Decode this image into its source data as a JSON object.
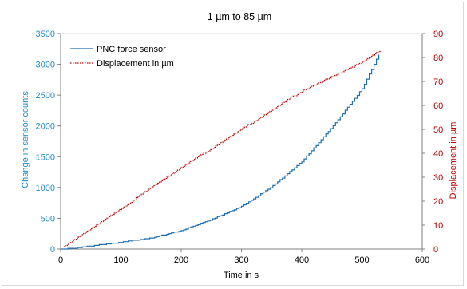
{
  "chart_data": {
    "type": "line",
    "title": "1 µm to 85 µm",
    "xlabel": "Time in s",
    "ylabel_left": "Change in sensor counts",
    "ylabel_right": "Displacement in µm",
    "xlim": [
      0,
      600
    ],
    "ylim_left": [
      0,
      3500
    ],
    "ylim_right": [
      0,
      90
    ],
    "x_ticks": [
      0,
      100,
      200,
      300,
      400,
      500,
      600
    ],
    "y_left_ticks": [
      0,
      500,
      1000,
      1500,
      2000,
      2500,
      3000,
      3500
    ],
    "y_right_ticks": [
      0,
      10,
      20,
      30,
      40,
      50,
      60,
      70,
      80,
      90
    ],
    "grid": true,
    "legend_position": "top-left",
    "series": [
      {
        "name": "PNC force sensor",
        "axis": "left",
        "color": "#1f6fb2",
        "style": "solid-step",
        "x": [
          0,
          20,
          50,
          100,
          150,
          200,
          250,
          300,
          350,
          400,
          430,
          460,
          480,
          500,
          510,
          520,
          525,
          530
        ],
        "y": [
          0,
          10,
          50,
          110,
          180,
          300,
          480,
          690,
          1010,
          1420,
          1750,
          2100,
          2350,
          2600,
          2800,
          3000,
          3100,
          3200
        ]
      },
      {
        "name": "Displacement in µm",
        "axis": "right",
        "color": "#c00000",
        "style": "dotted",
        "x": [
          5,
          100,
          200,
          300,
          400,
          500,
          530
        ],
        "y": [
          1,
          17,
          34,
          50,
          66,
          78,
          83
        ]
      }
    ],
    "colors": {
      "left_axis": "#1f8ccc",
      "right_axis": "#c00000",
      "grid": "#d9d9d9",
      "axis": "#7f7f7f"
    }
  }
}
